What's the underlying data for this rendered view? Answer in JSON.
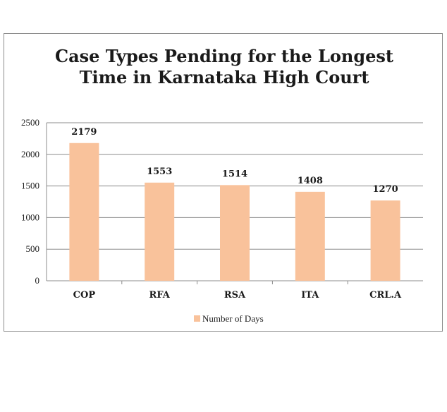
{
  "chart_data": {
    "type": "bar",
    "title_lines": [
      "Case Types Pending for the Longest",
      "Time in Karnataka High Court"
    ],
    "categories": [
      "COP",
      "RFA",
      "RSA",
      "ITA",
      "CRL.A"
    ],
    "series": [
      {
        "name": "Number of Days",
        "values": [
          2179,
          1553,
          1514,
          1408,
          1270
        ]
      }
    ],
    "data_labels": [
      "2179",
      "1553",
      "1514",
      "1408",
      "1270"
    ],
    "yticks": [
      0,
      500,
      1000,
      1500,
      2000,
      2500
    ],
    "ylim": [
      0,
      2500
    ],
    "xlabel": "",
    "ylabel": "",
    "grid": true,
    "legend_position": "bottom",
    "colors": {
      "bar": "#f9c29b",
      "grid": "#8c8c8c",
      "axis": "#8c8c8c",
      "border": "#8c8c8c"
    }
  }
}
